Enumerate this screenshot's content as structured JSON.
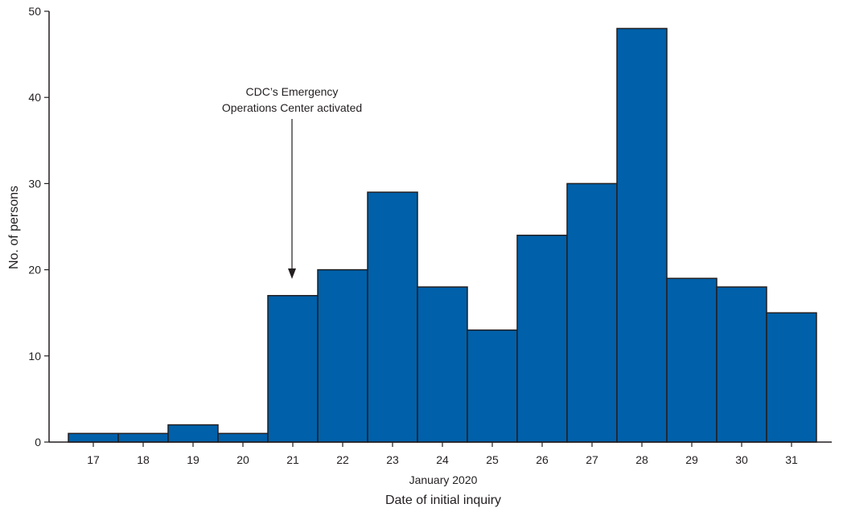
{
  "chart_data": {
    "type": "bar",
    "categories": [
      "17",
      "18",
      "19",
      "20",
      "21",
      "22",
      "23",
      "24",
      "25",
      "26",
      "27",
      "28",
      "29",
      "30",
      "31"
    ],
    "values": [
      1,
      1,
      2,
      1,
      17,
      20,
      29,
      18,
      13,
      24,
      30,
      48,
      19,
      18,
      15
    ],
    "ylabel": "No. of persons",
    "xlabel_sub": "January 2020",
    "xlabel": "Date of initial inquiry",
    "ylim": [
      0,
      50
    ],
    "yticks": [
      0,
      10,
      20,
      30,
      40,
      50
    ],
    "grid": false,
    "bar_color": "#0060a9",
    "bar_edge_color": "#231f20",
    "annotation": {
      "lines": [
        "CDC’s Emergency",
        "Operations Center activated"
      ],
      "target_category": "21"
    }
  }
}
